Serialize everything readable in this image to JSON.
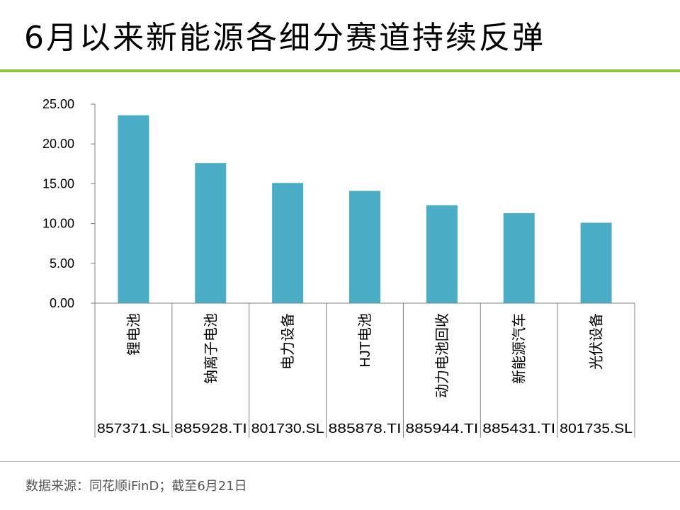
{
  "title": "6月以来新能源各细分赛道持续反弹",
  "source": "数据来源：同花顺iFinD；截至6月21日",
  "colors": {
    "bar": "#4bacc6",
    "accent_rule": "#8dc63f",
    "axis": "#808080",
    "grid": "#e6e6e6"
  },
  "chart_data": {
    "type": "bar",
    "title": "",
    "xlabel": "",
    "ylabel": "",
    "ylim": [
      0,
      25
    ],
    "yticks": [
      "0.00",
      "5.00",
      "10.00",
      "15.00",
      "20.00",
      "25.00"
    ],
    "grid": false,
    "categories": [
      "锂电池",
      "钠离子电池",
      "电力设备",
      "HJT电池",
      "动力电池回收",
      "新能源汽车",
      "光伏设备"
    ],
    "codes": [
      "857371.SL",
      "885928.TI",
      "801730.SL",
      "885878.TI",
      "885944.TI",
      "885431.TI",
      "801735.SL"
    ],
    "values": [
      23.6,
      17.6,
      15.1,
      14.1,
      12.3,
      11.3,
      10.1
    ]
  }
}
